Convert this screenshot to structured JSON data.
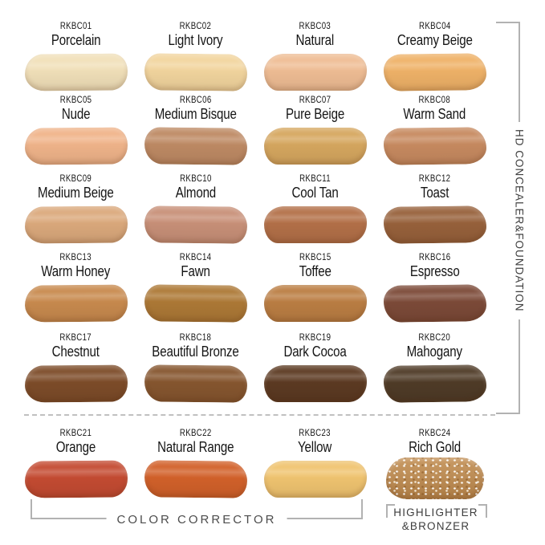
{
  "product_line": {
    "label": "HD CONCEALER&FOUNDATION"
  },
  "group_labels": {
    "color_corrector": "COLOR CORRECTOR",
    "highlighter_line1": "HIGHLIGHTER",
    "highlighter_line2": "&BRONZER"
  },
  "ui_colors": {
    "bracket_line": "#b2b2b2",
    "label_text": "#151515",
    "group_text": "#4c4c4c",
    "background": "#ffffff"
  },
  "chart_data": {
    "type": "table",
    "title": "HD CONCEALER&FOUNDATION",
    "columns": [
      "code",
      "name",
      "swatch_color",
      "group"
    ],
    "rows": [
      {
        "code": "RKBC01",
        "name": "Porcelain",
        "color": "#f1e0b9",
        "group": "HD CONCEALER&FOUNDATION"
      },
      {
        "code": "RKBC02",
        "name": "Light Ivory",
        "color": "#f2d59e",
        "group": "HD CONCEALER&FOUNDATION"
      },
      {
        "code": "RKBC03",
        "name": "Natural",
        "color": "#efbd94",
        "group": "HD CONCEALER&FOUNDATION"
      },
      {
        "code": "RKBC04",
        "name": "Creamy Beige",
        "color": "#efb268",
        "group": "HD CONCEALER&FOUNDATION"
      },
      {
        "code": "RKBC05",
        "name": "Nude",
        "color": "#f0b48a",
        "group": "HD CONCEALER&FOUNDATION"
      },
      {
        "code": "RKBC06",
        "name": "Medium Bisque",
        "color": "#be8a64",
        "group": "HD CONCEALER&FOUNDATION"
      },
      {
        "code": "RKBC07",
        "name": "Pure Beige",
        "color": "#d6a75f",
        "group": "HD CONCEALER&FOUNDATION"
      },
      {
        "code": "RKBC08",
        "name": "Warm Sand",
        "color": "#c78a60",
        "group": "HD CONCEALER&FOUNDATION"
      },
      {
        "code": "RKBC09",
        "name": "Medium Beige",
        "color": "#dba97c",
        "group": "HD CONCEALER&FOUNDATION"
      },
      {
        "code": "RKBC10",
        "name": "Almond",
        "color": "#c89078",
        "group": "HD CONCEALER&FOUNDATION"
      },
      {
        "code": "RKBC11",
        "name": "Cool Tan",
        "color": "#b37048",
        "group": "HD CONCEALER&FOUNDATION"
      },
      {
        "code": "RKBC12",
        "name": "Toast",
        "color": "#97613b",
        "group": "HD CONCEALER&FOUNDATION"
      },
      {
        "code": "RKBC13",
        "name": "Warm Honey",
        "color": "#c88a4e",
        "group": "HD CONCEALER&FOUNDATION"
      },
      {
        "code": "RKBC14",
        "name": "Fawn",
        "color": "#ad7936",
        "group": "HD CONCEALER&FOUNDATION"
      },
      {
        "code": "RKBC15",
        "name": "Toffee",
        "color": "#bb7e43",
        "group": "HD CONCEALER&FOUNDATION"
      },
      {
        "code": "RKBC16",
        "name": "Espresso",
        "color": "#7c4a38",
        "group": "HD CONCEALER&FOUNDATION"
      },
      {
        "code": "RKBC17",
        "name": "Chestnut",
        "color": "#7d4c29",
        "group": "HD CONCEALER&FOUNDATION"
      },
      {
        "code": "RKBC18",
        "name": "Beautiful Bronze",
        "color": "#86562f",
        "group": "HD CONCEALER&FOUNDATION"
      },
      {
        "code": "RKBC19",
        "name": "Dark Cocoa",
        "color": "#5c3a22",
        "group": "HD CONCEALER&FOUNDATION"
      },
      {
        "code": "RKBC20",
        "name": "Mahogany",
        "color": "#4f3b27",
        "group": "HD CONCEALER&FOUNDATION"
      },
      {
        "code": "RKBC21",
        "name": "Orange",
        "color": "#c44b32",
        "group": "COLOR CORRECTOR"
      },
      {
        "code": "RKBC22",
        "name": "Natural Range",
        "color": "#d2612a",
        "group": "COLOR CORRECTOR"
      },
      {
        "code": "RKBC23",
        "name": "Yellow",
        "color": "#f0c470",
        "group": "COLOR CORRECTOR"
      },
      {
        "code": "RKBC24",
        "name": "Rich Gold",
        "color": "#c08a4c",
        "group": "HIGHLIGHTER&BRONZER",
        "glitter": true
      }
    ]
  }
}
